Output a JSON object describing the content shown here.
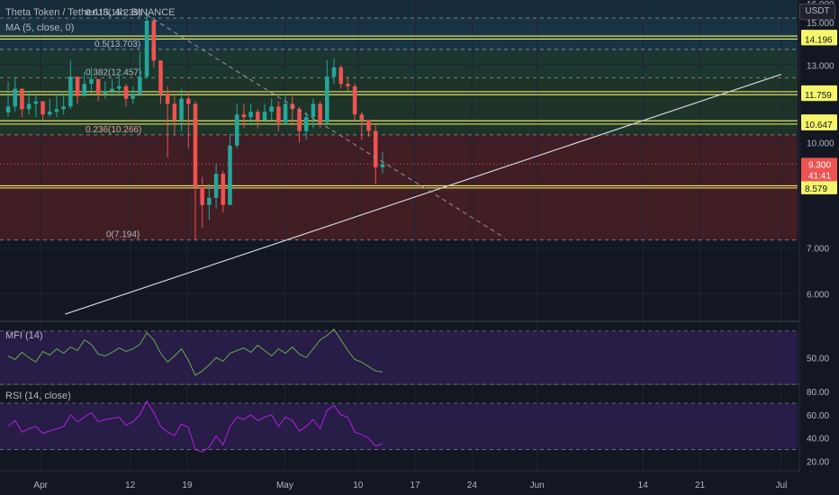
{
  "header": {
    "symbol_line": "Theta Token / TetherUS, 4h, BINANCE",
    "ma_line": "MA (5, close, 0)",
    "currency": "USDT"
  },
  "indicators": {
    "mfi_label": "MFI (14)",
    "rsi_label": "RSI (14, close)"
  },
  "colors": {
    "background": "#131722",
    "up": "#26a69a",
    "down": "#ef5350",
    "horizontal_levels": "#f5f56a",
    "trendline": "#d1d4dc",
    "mfi_line": "#6aa84f",
    "rsi_line": "#b31ee6",
    "indicator_band": "#2a1e4a",
    "last_price_label": "#ef5350"
  },
  "chart_data": [
    {
      "type": "candlestick",
      "title": "Theta Token / TetherUS, 4h, BINANCE",
      "x_axis": {
        "ticks": [
          "Apr",
          "12",
          "19",
          "May",
          "10",
          "17",
          "24",
          "Jun",
          "14",
          "21",
          "Jul"
        ],
        "tick_dates": [
          "2021-04-01",
          "2021-04-12",
          "2021-04-19",
          "2021-05-01",
          "2021-05-10",
          "2021-05-17",
          "2021-05-24",
          "2021-06-01",
          "2021-06-14",
          "2021-06-21",
          "2021-07-01"
        ]
      },
      "y_axis": {
        "scale": "log",
        "unit": "USDT",
        "ticks": [
          16.0,
          15.0,
          13.0,
          10.0,
          7.0,
          6.0
        ],
        "tick_labels": [
          "16.000",
          "15.000",
          "13.000",
          "10.000",
          "7.000",
          "6.000"
        ],
        "range": [
          5.5,
          16.0
        ]
      },
      "series": [
        {
          "name": "Theta Token / TetherUS",
          "values_close": [
            11.3,
            12.0,
            11.2,
            11.4,
            11.5,
            11.0,
            11.1,
            11.2,
            11.3,
            12.5,
            11.7,
            12.2,
            12.4,
            11.8,
            11.9,
            12.0,
            12.1,
            11.6,
            11.8,
            12.5,
            15.1,
            13.2,
            11.8,
            11.4,
            10.8,
            11.6,
            11.4,
            8.6,
            8.1,
            8.3,
            9.0,
            8.1,
            9.9,
            11.0,
            10.9,
            11.1,
            10.8,
            11.1,
            11.3,
            10.7,
            11.4,
            11.2,
            10.4,
            10.9,
            11.4,
            10.7,
            12.5,
            12.9,
            12.2,
            12.1,
            11.0,
            10.8,
            10.4,
            9.2,
            9.3
          ],
          "highs": [
            12.3,
            12.5,
            12.0,
            11.9,
            11.8,
            11.5,
            11.6,
            11.8,
            11.9,
            13.2,
            12.4,
            12.7,
            12.9,
            12.3,
            12.3,
            12.4,
            12.6,
            12.2,
            12.1,
            13.6,
            15.7,
            15.2,
            13.2,
            12.1,
            11.7,
            12.0,
            11.9,
            11.5,
            8.9,
            8.7,
            9.3,
            9.1,
            10.3,
            11.4,
            11.4,
            11.4,
            11.2,
            11.4,
            11.6,
            11.5,
            11.8,
            11.7,
            11.3,
            11.1,
            11.6,
            11.5,
            13.2,
            13.3,
            13.0,
            12.5,
            12.2,
            11.1,
            10.8,
            10.6,
            9.7
          ],
          "lows": [
            10.9,
            11.1,
            10.9,
            11.0,
            10.9,
            10.8,
            10.9,
            10.9,
            11.0,
            11.2,
            11.4,
            11.7,
            11.8,
            11.5,
            11.6,
            11.7,
            11.7,
            11.3,
            11.4,
            11.7,
            12.4,
            12.9,
            11.4,
            9.5,
            10.3,
            10.4,
            9.8,
            7.2,
            7.5,
            7.7,
            8.0,
            7.9,
            8.1,
            9.8,
            10.5,
            10.6,
            10.5,
            10.7,
            10.8,
            10.4,
            10.6,
            10.6,
            10.0,
            10.1,
            10.5,
            10.5,
            10.6,
            12.2,
            12.0,
            11.9,
            10.8,
            10.1,
            10.2,
            8.7,
            9.0
          ],
          "last_value": 9.3
        }
      ],
      "horizontal_levels": [
        14.337,
        14.196,
        11.88,
        11.759,
        10.768,
        10.647,
        8.644,
        8.579
      ],
      "horizontal_level_labels": [
        "14.337",
        "14.196",
        "11.880",
        "11.759",
        "10.768",
        "10.647",
        "8.644",
        "8.579"
      ],
      "last_price_label": "9.300",
      "countdown_label": "41:41",
      "fibonacci": {
        "levels": [
          0.618,
          0.5,
          0.382,
          0.236,
          0
        ],
        "prices": [
          15.239,
          13.703,
          12.457,
          10.266,
          7.194
        ],
        "labels": [
          "0.618(15.239)",
          "0.5(13.703)",
          "0.382(12.457)",
          "0.236(10.266)",
          "0(7.194)"
        ],
        "zone_colors": [
          "#1b3a4b",
          "#1f3d33",
          "#213a2a",
          "#4a1f24"
        ]
      },
      "trendline": {
        "from": {
          "x": "2021-04-04",
          "y": 5.6
        },
        "to": {
          "x": "2021-07-01",
          "y": 12.6
        }
      },
      "dashed_projection": {
        "from": {
          "x": "2021-04-14",
          "y": 15.4
        },
        "to": {
          "x": "2021-05-28",
          "y": 7.25
        }
      }
    },
    {
      "type": "line",
      "title": "MFI (14)",
      "y_axis": {
        "ticks": [
          50.0
        ],
        "tick_labels": [
          "50.00"
        ],
        "range": [
          22,
          88
        ],
        "guide_lines": [
          80,
          20
        ]
      },
      "series": [
        {
          "name": "MFI (14)",
          "values": [
            52,
            48,
            56,
            50,
            45,
            57,
            53,
            60,
            55,
            62,
            58,
            70,
            65,
            54,
            52,
            56,
            61,
            57,
            60,
            65,
            78,
            70,
            55,
            45,
            52,
            60,
            47,
            30,
            35,
            42,
            50,
            46,
            55,
            58,
            61,
            56,
            64,
            58,
            52,
            60,
            55,
            62,
            54,
            50,
            60,
            70,
            75,
            82,
            70,
            58,
            48,
            45,
            40,
            35,
            34
          ]
        }
      ]
    },
    {
      "type": "line",
      "title": "RSI (14, close)",
      "y_axis": {
        "ticks": [
          80.0,
          60.0,
          40.0,
          20.0
        ],
        "tick_labels": [
          "80.00",
          "60.00",
          "40.00",
          "20.00"
        ],
        "range": [
          18,
          84
        ],
        "guide_lines": [
          70,
          30
        ]
      },
      "series": [
        {
          "name": "RSI (14, close)",
          "values": [
            50,
            55,
            45,
            48,
            50,
            44,
            46,
            48,
            50,
            60,
            54,
            58,
            62,
            54,
            56,
            57,
            58,
            51,
            54,
            60,
            72,
            62,
            50,
            45,
            42,
            52,
            49,
            30,
            28,
            32,
            42,
            34,
            50,
            58,
            56,
            60,
            55,
            58,
            60,
            50,
            58,
            55,
            46,
            50,
            56,
            48,
            64,
            68,
            60,
            58,
            45,
            43,
            40,
            33,
            35
          ]
        }
      ]
    }
  ]
}
